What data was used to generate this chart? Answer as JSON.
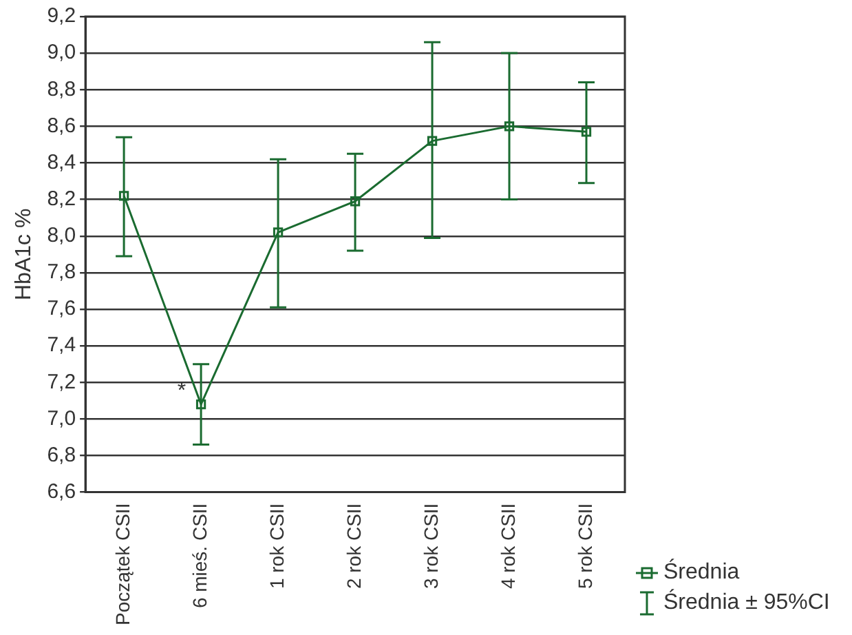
{
  "chart_data": {
    "type": "line",
    "ylabel": "HbA1c %",
    "categories": [
      "Początek CSII",
      "6 mieś. CSII",
      "1 rok CSII",
      "2 rok CSII",
      "3 rok CSII",
      "4 rok CSII",
      "5 rok CSII"
    ],
    "series": [
      {
        "name": "Średnia",
        "color": "#1a6b30",
        "values": [
          8.22,
          7.08,
          8.02,
          8.19,
          8.52,
          8.6,
          8.57
        ],
        "errors": [
          [
            7.89,
            8.54
          ],
          [
            6.86,
            7.3
          ],
          [
            7.61,
            8.42
          ],
          [
            7.92,
            8.45
          ],
          [
            7.99,
            9.06
          ],
          [
            8.2,
            9.0
          ],
          [
            8.29,
            8.84
          ]
        ]
      }
    ],
    "ylim": [
      6.6,
      9.2
    ],
    "yticks": [
      {
        "value": 6.6,
        "label": "6,6"
      },
      {
        "value": 6.8,
        "label": "6,8"
      },
      {
        "value": 7.0,
        "label": "7,0"
      },
      {
        "value": 7.2,
        "label": "7,2"
      },
      {
        "value": 7.4,
        "label": "7,4"
      },
      {
        "value": 7.6,
        "label": "7,6"
      },
      {
        "value": 7.8,
        "label": "7,8"
      },
      {
        "value": 8.0,
        "label": "8,0"
      },
      {
        "value": 8.2,
        "label": "8,2"
      },
      {
        "value": 8.4,
        "label": "8,4"
      },
      {
        "value": 8.6,
        "label": "8,6"
      },
      {
        "value": 8.8,
        "label": "8,8"
      },
      {
        "value": 9.0,
        "label": "9,0"
      },
      {
        "value": 9.2,
        "label": "9,2"
      }
    ],
    "grid": "y",
    "marker": "square",
    "line_style": "solid",
    "legend": "bottom right",
    "annotations": [
      {
        "text": "*",
        "x": "6 mieś. CSII",
        "y": 7.15
      },
      "Średnia ± 95%CI"
    ]
  }
}
